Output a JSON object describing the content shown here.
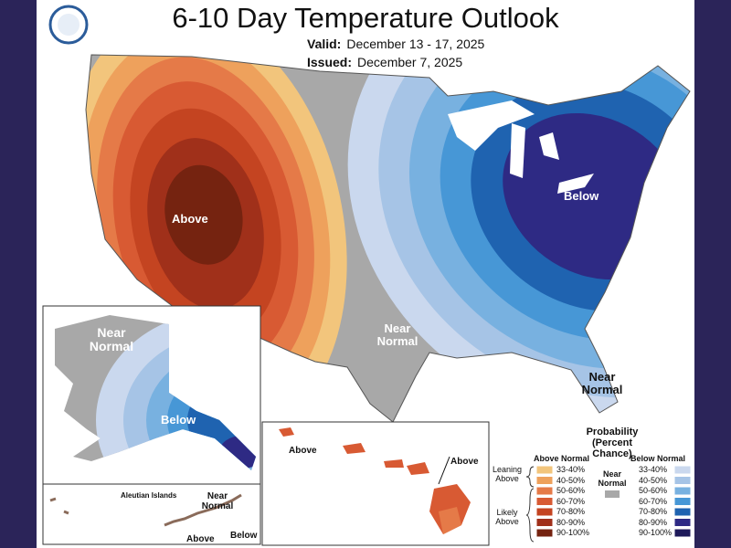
{
  "header": {
    "title": "6-10 Day Temperature Outlook",
    "valid": {
      "label": "Valid:",
      "value": "December 13 - 17, 2025"
    },
    "issued": {
      "label": "Issued:",
      "value": "December 7, 2025"
    }
  },
  "map_labels": {
    "conus": {
      "above": "Above",
      "below": "Below",
      "near_normal_south": "Near Normal",
      "near_normal_florida": "Near Normal"
    },
    "alaska": {
      "near_normal": "Near Normal",
      "below": "Below"
    },
    "aleutians": {
      "title": "Aleutian Islands",
      "near_normal": "Near Normal",
      "above": "Above",
      "below": "Below"
    },
    "hawaii": {
      "above_west": "Above",
      "above_east": "Above"
    }
  },
  "legend": {
    "title": "Probability (Percent Chance)",
    "above": {
      "heading": "Above Normal",
      "items": [
        {
          "label": "33-40%",
          "color": "#f2c57c"
        },
        {
          "label": "40-50%",
          "color": "#eea15c"
        },
        {
          "label": "50-60%",
          "color": "#e57a48"
        },
        {
          "label": "60-70%",
          "color": "#d85a33"
        },
        {
          "label": "70-80%",
          "color": "#c44421"
        },
        {
          "label": "80-90%",
          "color": "#a0301a"
        },
        {
          "label": "90-100%",
          "color": "#752310"
        }
      ]
    },
    "below": {
      "heading": "Below Normal",
      "items": [
        {
          "label": "33-40%",
          "color": "#cad8ee"
        },
        {
          "label": "40-50%",
          "color": "#a6c4e6"
        },
        {
          "label": "50-60%",
          "color": "#78b1e0"
        },
        {
          "label": "60-70%",
          "color": "#4797d6"
        },
        {
          "label": "70-80%",
          "color": "#1f63b0"
        },
        {
          "label": "80-90%",
          "color": "#2e2a84"
        },
        {
          "label": "90-100%",
          "color": "#1e1a5a"
        }
      ]
    },
    "near": {
      "label": "Near Normal",
      "color": "#a8a8a8"
    },
    "leaning": "Leaning Above",
    "likely": "Likely Above"
  }
}
